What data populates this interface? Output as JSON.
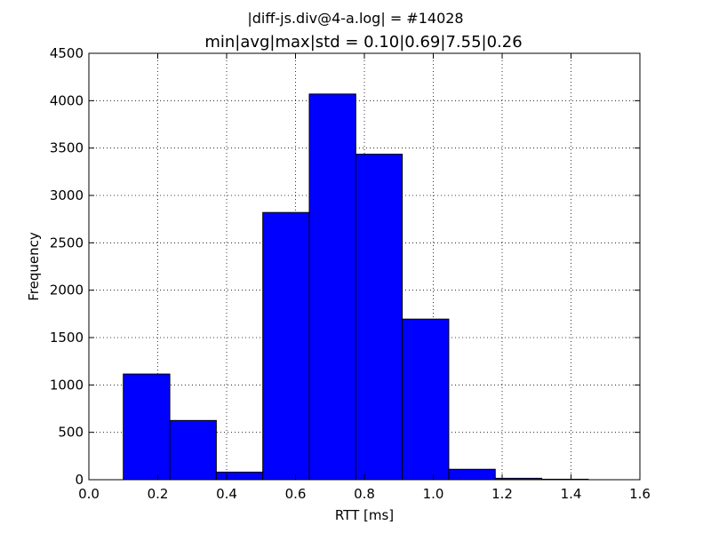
{
  "figure": {
    "suptitle": "|diff-js.div@4-a.log| = #14028"
  },
  "chart_data": {
    "type": "bar",
    "title": "min|avg|max|std = 0.10|0.69|7.55|0.26",
    "xlabel": "RTT [ms]",
    "ylabel": "Frequency",
    "xlim": [
      0.0,
      1.6
    ],
    "ylim": [
      0,
      4500
    ],
    "xticks": [
      0.0,
      0.2,
      0.4,
      0.6,
      0.8,
      1.0,
      1.2,
      1.4,
      1.6
    ],
    "xtick_labels": [
      "0.0",
      "0.2",
      "0.4",
      "0.6",
      "0.8",
      "1.0",
      "1.2",
      "1.4",
      "1.6"
    ],
    "yticks": [
      0,
      500,
      1000,
      1500,
      2000,
      2500,
      3000,
      3500,
      4000,
      4500
    ],
    "ytick_labels": [
      "0",
      "500",
      "1000",
      "1500",
      "2000",
      "2500",
      "3000",
      "3500",
      "4000",
      "4500"
    ],
    "grid": true,
    "bar_color": "#0000ff",
    "bins": [
      {
        "x0": 0.1,
        "x1": 0.235,
        "value": 1115
      },
      {
        "x0": 0.235,
        "x1": 0.37,
        "value": 625
      },
      {
        "x0": 0.37,
        "x1": 0.505,
        "value": 80
      },
      {
        "x0": 0.505,
        "x1": 0.64,
        "value": 2820
      },
      {
        "x0": 0.64,
        "x1": 0.775,
        "value": 4070
      },
      {
        "x0": 0.775,
        "x1": 0.91,
        "value": 3435
      },
      {
        "x0": 0.91,
        "x1": 1.045,
        "value": 1695
      },
      {
        "x0": 1.045,
        "x1": 1.18,
        "value": 110
      },
      {
        "x0": 1.18,
        "x1": 1.315,
        "value": 15
      },
      {
        "x0": 1.315,
        "x1": 1.45,
        "value": 5
      }
    ]
  }
}
